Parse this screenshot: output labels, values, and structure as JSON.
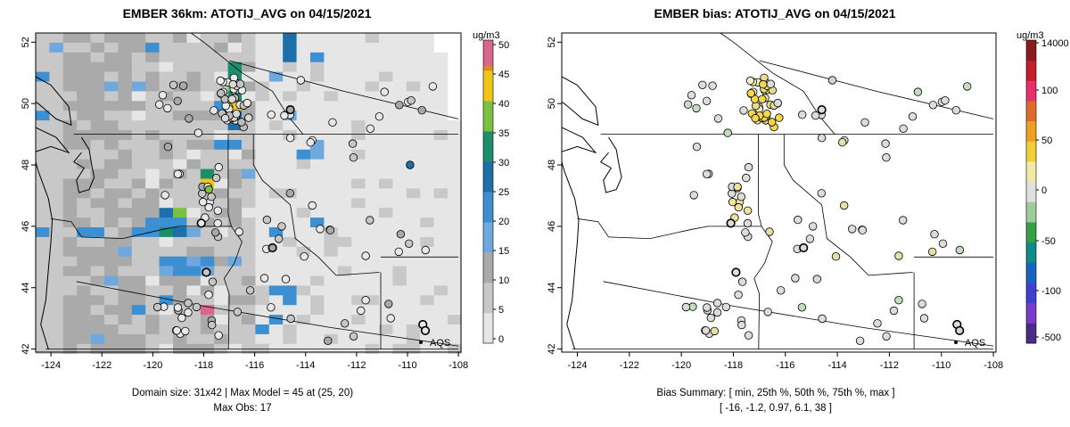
{
  "chart_data": [
    {
      "type": "heatmap",
      "title": "EMBER 36km: ATOTIJ_AVG on 04/15/2021",
      "xlim": [
        -124.6,
        -107.9
      ],
      "ylim": [
        41.9,
        52.3
      ],
      "x_ticks": [
        "-124",
        "-122",
        "-120",
        "-118",
        "-116",
        "-114",
        "-112",
        "-110",
        "-108"
      ],
      "y_ticks": [
        "42",
        "44",
        "46",
        "48",
        "50",
        "52"
      ],
      "colorbar": {
        "unit": "ug/m3",
        "ticks": [
          "0",
          "5",
          "10",
          "15",
          "20",
          "25",
          "30",
          "35",
          "40",
          "45",
          "50"
        ],
        "range": [
          0,
          50
        ]
      },
      "legend_label": "AQS",
      "caption_line1": "Domain size: 31x42 | Max Model = 45 at (25, 20)",
      "caption_line2": "Max Obs: 17"
    },
    {
      "type": "scatter",
      "title": "EMBER bias: ATOTIJ_AVG on 04/15/2021",
      "xlim": [
        -124.6,
        -107.9
      ],
      "ylim": [
        41.9,
        52.3
      ],
      "x_ticks": [
        "-124",
        "-122",
        "-120",
        "-118",
        "-116",
        "-114",
        "-112",
        "-110",
        "-108"
      ],
      "y_ticks": [
        "42",
        "44",
        "46",
        "48",
        "50",
        "52"
      ],
      "colorbar": {
        "unit": "ug/m3",
        "ticks": [
          "14000",
          "100",
          "50",
          "0",
          "-50",
          "-100",
          "-500"
        ]
      },
      "legend_label": "AQS",
      "caption_line1": "Bias Summary: [ min, 25th %, 50th %, 75th %, max ]",
      "caption_line2": "[ -16,  -1.2,  0.97,  6.1,  38 ]"
    }
  ]
}
